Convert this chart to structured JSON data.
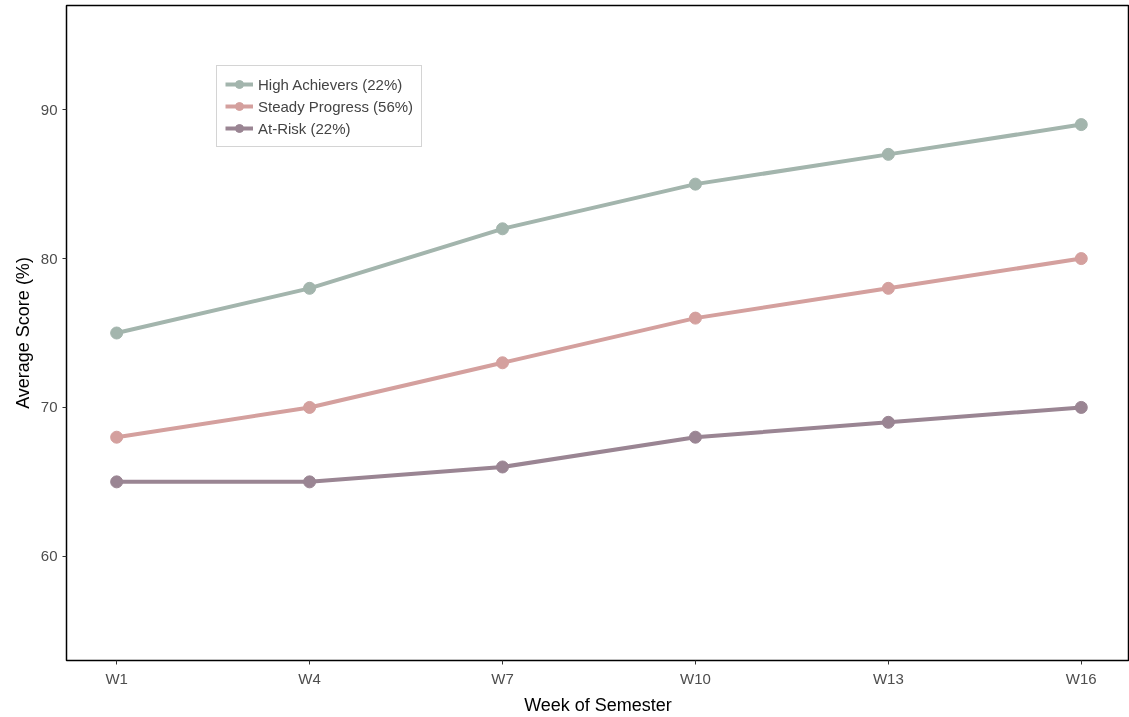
{
  "chart_data": {
    "type": "line",
    "xlabel": "Week of Semester",
    "ylabel": "Average Score (%)",
    "categories": [
      "W1",
      "W4",
      "W7",
      "W10",
      "W13",
      "W16"
    ],
    "series": [
      {
        "name": "High Achievers (22%)",
        "color": "#a3b5ad",
        "values": [
          75,
          78,
          82,
          85,
          87,
          89
        ]
      },
      {
        "name": "Steady Progress (56%)",
        "color": "#d4a09e",
        "values": [
          68,
          70,
          73,
          76,
          78,
          80
        ]
      },
      {
        "name": "At-Risk (22%)",
        "color": "#9a8593",
        "values": [
          65,
          65,
          66,
          68,
          69,
          70
        ]
      }
    ],
    "ylim": [
      53,
      97
    ],
    "yticks": [
      60,
      70,
      80,
      90
    ],
    "grid": false,
    "legend": "top left",
    "marker": "circle",
    "line_style": "solid"
  }
}
